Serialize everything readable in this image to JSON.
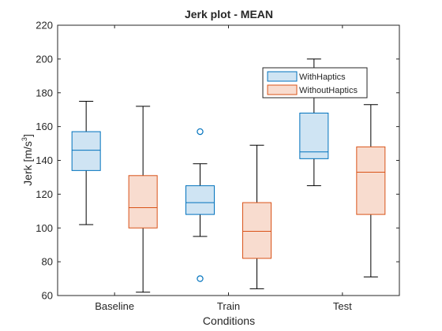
{
  "chart_data": {
    "type": "boxplot",
    "title": "Jerk plot - MEAN",
    "xlabel": "Conditions",
    "ylabel": "Jerk [m/s",
    "ylabel_sup": "3",
    "ylabel_end": "]",
    "ylim": [
      60,
      220
    ],
    "yticks": [
      60,
      80,
      100,
      120,
      140,
      160,
      180,
      200,
      220
    ],
    "categories": [
      "Baseline",
      "Train",
      "Test"
    ],
    "legend_position": "top-right",
    "series": [
      {
        "name": "WithHaptics",
        "edge_color": "#0072BD",
        "fill_color": "#cfe4f3",
        "boxes": [
          {
            "whisker_low": 102,
            "q1": 134,
            "median": 146,
            "q3": 157,
            "whisker_high": 175,
            "outliers": []
          },
          {
            "whisker_low": 95,
            "q1": 108,
            "median": 115,
            "q3": 125,
            "whisker_high": 138,
            "outliers": [
              157,
              70
            ]
          },
          {
            "whisker_low": 125,
            "q1": 141,
            "median": 145,
            "q3": 168,
            "whisker_high": 200,
            "outliers": []
          }
        ]
      },
      {
        "name": "WithoutHaptics",
        "edge_color": "#D95319",
        "fill_color": "#f8dccf",
        "boxes": [
          {
            "whisker_low": 62,
            "q1": 100,
            "median": 112,
            "q3": 131,
            "whisker_high": 172,
            "outliers": []
          },
          {
            "whisker_low": 64,
            "q1": 82,
            "median": 98,
            "q3": 115,
            "whisker_high": 149,
            "outliers": []
          },
          {
            "whisker_low": 71,
            "q1": 108,
            "median": 133,
            "q3": 148,
            "whisker_high": 173,
            "outliers": []
          }
        ]
      }
    ]
  }
}
